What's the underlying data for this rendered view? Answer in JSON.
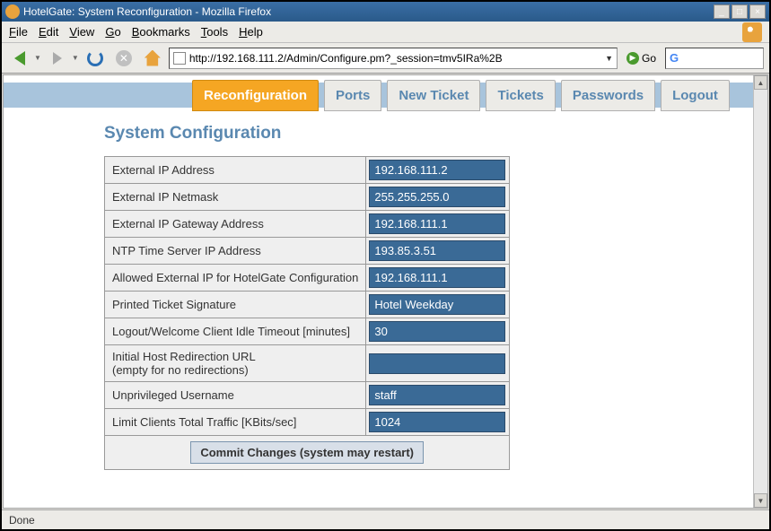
{
  "window": {
    "title": "HotelGate: System Reconfiguration - Mozilla Firefox"
  },
  "menubar": {
    "file": "File",
    "edit": "Edit",
    "view": "View",
    "go": "Go",
    "bookmarks": "Bookmarks",
    "tools": "Tools",
    "help": "Help"
  },
  "toolbar": {
    "url": "http://192.168.111.2/Admin/Configure.pm?_session=tmv5IRa%2B",
    "go": "Go"
  },
  "tabs": {
    "reconfiguration": "Reconfiguration",
    "ports": "Ports",
    "newticket": "New Ticket",
    "tickets": "Tickets",
    "passwords": "Passwords",
    "logout": "Logout"
  },
  "page": {
    "title": "System Configuration"
  },
  "fields": {
    "ext_ip": {
      "label": "External IP Address",
      "value": "192.168.111.2"
    },
    "ext_netmask": {
      "label": "External IP Netmask",
      "value": "255.255.255.0"
    },
    "ext_gateway": {
      "label": "External IP Gateway Address",
      "value": "192.168.111.1"
    },
    "ntp": {
      "label": "NTP Time Server IP Address",
      "value": "193.85.3.51"
    },
    "allowed_ip": {
      "label": "Allowed External IP for HotelGate Configuration",
      "value": "192.168.111.1"
    },
    "signature": {
      "label": "Printed Ticket Signature",
      "value": "Hotel Weekday"
    },
    "idle": {
      "label": "Logout/Welcome Client Idle Timeout [minutes]",
      "value": "30"
    },
    "redirect_l1": "Initial Host Redirection URL",
    "redirect_l2": "(empty for no redirections)",
    "redirect_value": "",
    "unpriv": {
      "label": "Unprivileged Username",
      "value": "staff"
    },
    "traffic": {
      "label": "Limit Clients Total Traffic [KBits/sec]",
      "value": "1024"
    }
  },
  "commit": "Commit Changes (system may restart)",
  "status": "Done",
  "colors": {
    "tab_active_bg": "#f5a623",
    "tab_fg": "#5a88b0",
    "input_bg": "#3a6a96",
    "nav_strip": "#a8c4dc"
  }
}
